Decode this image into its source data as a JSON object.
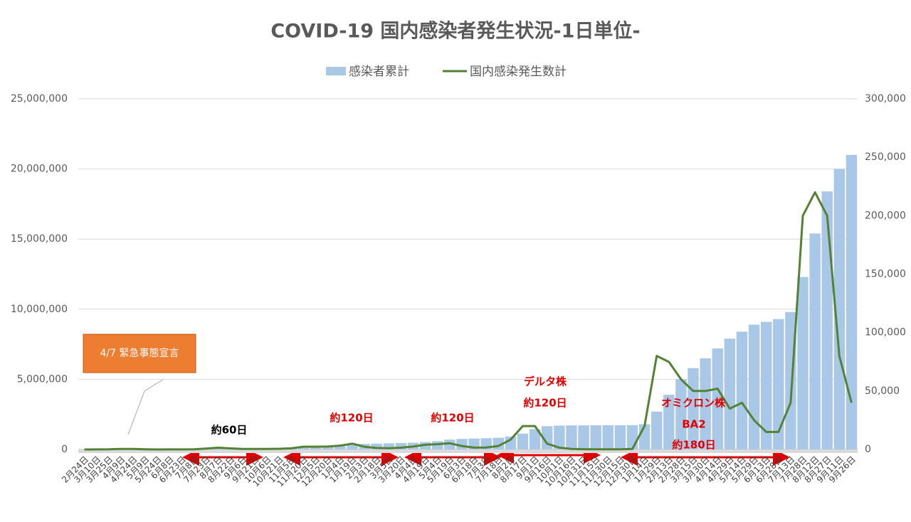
{
  "chart_data": {
    "type": "bar-line",
    "title": "COVID-19 国内感染者発生状況-1日単位-",
    "categories": [
      "2月24日",
      "3月10日",
      "3月25日",
      "4月9日",
      "4月24日",
      "5月9日",
      "5月24日",
      "6月8日",
      "6月23日",
      "7月8日",
      "7月23日",
      "8月7日",
      "8月22日",
      "9月6日",
      "9月21日",
      "10月6日",
      "10月21日",
      "11月5日",
      "11月20日",
      "12月5日",
      "12月20日",
      "1月4日",
      "1月19日",
      "2月3日",
      "2月18日",
      "3月5日",
      "3月20日",
      "4月4日",
      "4月19日",
      "5月4日",
      "5月19日",
      "6月3日",
      "6月18日",
      "7月3日",
      "7月18日",
      "8月2日",
      "8月17日",
      "9月1日",
      "9月16日",
      "10月1日",
      "10月16日",
      "10月31日",
      "11月15日",
      "11月30日",
      "12月15日",
      "12月30日",
      "1月14日",
      "1月29日",
      "2月13日",
      "2月28日",
      "3月15日",
      "3月30日",
      "4月14日",
      "4月29日",
      "5月14日",
      "5月29日",
      "6月13日",
      "6月28日",
      "7月13日",
      "7月28日",
      "8月12日",
      "8月27日",
      "9月11日",
      "9月26日"
    ],
    "series": [
      {
        "name": "感染者累計",
        "color": "#a9c8e8",
        "kind": "bar",
        "axis": "y",
        "values": [
          150,
          600,
          1300,
          5000,
          12500,
          15500,
          16500,
          17200,
          17900,
          20000,
          29000,
          42000,
          60000,
          71000,
          78000,
          85000,
          93000,
          105000,
          125000,
          160000,
          200000,
          240000,
          340000,
          395000,
          420000,
          437000,
          455000,
          480000,
          530000,
          590000,
          700000,
          750000,
          780000,
          800000,
          830000,
          920000,
          1130000,
          1450000,
          1660000,
          1700000,
          1715000,
          1720000,
          1723000,
          1725000,
          1727000,
          1735000,
          1800000,
          2700000,
          3900000,
          5000000,
          5800000,
          6500000,
          7200000,
          7900000,
          8400000,
          8900000,
          9100000,
          9300000,
          9800000,
          12300000,
          15400000,
          18400000,
          20000000,
          21000000
        ]
      },
      {
        "name": "国内感染発生数計",
        "color": "#548235",
        "kind": "line",
        "axis": "y2",
        "values": [
          0,
          50,
          100,
          500,
          400,
          100,
          30,
          40,
          60,
          200,
          800,
          1500,
          900,
          500,
          400,
          500,
          600,
          1000,
          2400,
          2400,
          2500,
          3300,
          5000,
          2300,
          1300,
          1100,
          1500,
          2500,
          4000,
          4500,
          5300,
          3000,
          1600,
          1700,
          3000,
          8400,
          20000,
          20000,
          5000,
          1500,
          400,
          250,
          200,
          100,
          200,
          400,
          20000,
          80000,
          75000,
          60000,
          50000,
          50000,
          52000,
          35000,
          40000,
          25000,
          15000,
          15000,
          40000,
          200000,
          220000,
          200000,
          80000,
          40000
        ]
      }
    ],
    "ylim": [
      0,
      25000000
    ],
    "yticks": [
      0,
      {
        "value": 5000000,
        "label": "5,000,000"
      },
      {
        "value": 10000000,
        "label": "10,000,000"
      },
      {
        "value": 15000000,
        "label": "15,000,000"
      },
      {
        "value": 20000000,
        "label": "20,000,000"
      },
      {
        "value": 25000000,
        "label": "25,000,000"
      }
    ],
    "y2lim": [
      0,
      300000
    ],
    "y2ticks": [
      0,
      {
        "value": 50000,
        "label": "50,000"
      },
      {
        "value": 100000,
        "label": "100,000"
      },
      {
        "value": 150000,
        "label": "150,000"
      },
      {
        "value": 200000,
        "label": "200,000"
      },
      {
        "value": 250000,
        "label": "250,000"
      },
      {
        "value": 300000,
        "label": "300,000"
      }
    ],
    "grid": true,
    "legend": "top",
    "callout": "4/7 緊急事態宣言",
    "annotations": [
      "約60日",
      "約120日",
      "約120日",
      "デルタ株",
      "約120日",
      "オミクロン株",
      "BA2",
      "約180日"
    ]
  }
}
